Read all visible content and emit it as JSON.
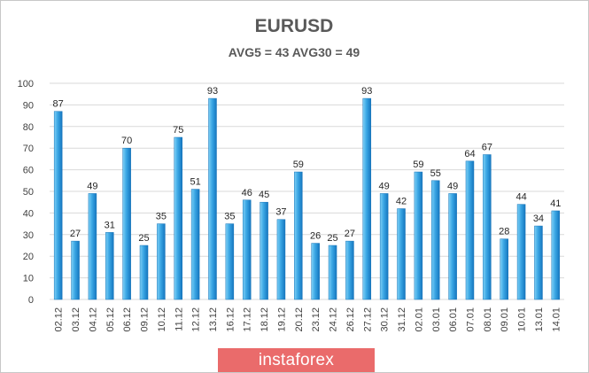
{
  "chart_data": {
    "type": "bar",
    "title": "EURUSD",
    "subtitle": "AVG5 = 43 AVG30 = 49",
    "categories": [
      "02.12",
      "03.12",
      "04.12",
      "05.12",
      "06.12",
      "09.12",
      "10.12",
      "11.12",
      "12.12",
      "13.12",
      "16.12",
      "17.12",
      "18.12",
      "19.12",
      "20.12",
      "23.12",
      "24.12",
      "26.12",
      "27.12",
      "30.12",
      "31.12",
      "02.01",
      "03.01",
      "06.01",
      "07.01",
      "08.01",
      "09.01",
      "10.01",
      "13.01",
      "14.01"
    ],
    "values": [
      87,
      27,
      49,
      31,
      70,
      25,
      35,
      75,
      51,
      93,
      35,
      46,
      45,
      37,
      59,
      26,
      25,
      27,
      93,
      49,
      42,
      59,
      55,
      49,
      64,
      67,
      28,
      44,
      34,
      41
    ],
    "ylim": [
      0,
      100
    ],
    "yticks": [
      0,
      10,
      20,
      30,
      40,
      50,
      60,
      70,
      80,
      90,
      100
    ],
    "grid": true,
    "data_labels": true,
    "bar_color": "#1e8fd6",
    "bar_highlight": "#7fd0f5",
    "grid_color": "#d9d9d9"
  },
  "watermark": {
    "text": "instaforex",
    "color": "#ea6b6b"
  }
}
